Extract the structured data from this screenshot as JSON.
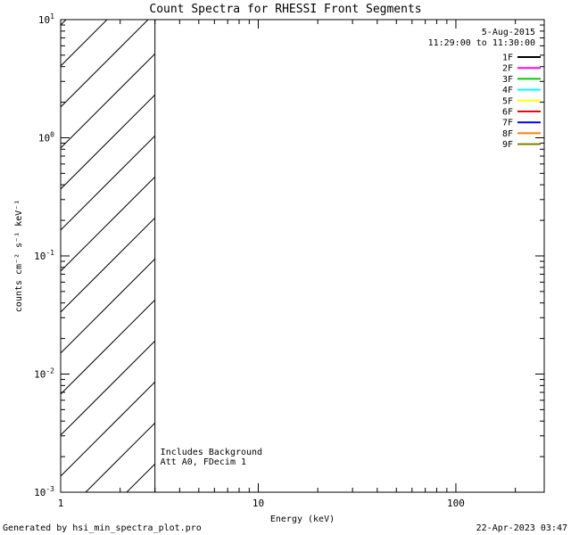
{
  "page": {
    "title": "Count Spectra for RHESSI Front Segments",
    "footer_left": "Generated by hsi_min_spectra_plot.pro",
    "footer_right": "22-Apr-2023 03:47"
  },
  "chart_data": {
    "type": "line",
    "title": "Count Spectra for RHESSI Front Segments",
    "xlabel": "Energy (keV)",
    "ylabel": "counts cm⁻² s⁻¹ keV⁻¹",
    "xscale": "log",
    "yscale": "log",
    "xlim": [
      1,
      280
    ],
    "ylim": [
      0.001,
      10
    ],
    "x_major_ticks": [
      1,
      10,
      100
    ],
    "x_tick_labels": [
      "1",
      "10",
      "100"
    ],
    "y_major_ticks": [
      0.001,
      0.01,
      0.1,
      1,
      10
    ],
    "y_tick_exponents": [
      "-3",
      "-2",
      "-1",
      "0",
      "1"
    ],
    "grid": false,
    "frame_color": "#000000",
    "background_color": "#ffffff",
    "hatched_region": {
      "x_start": 1,
      "x_end": 3
    },
    "annotations": [
      "Includes Background",
      "Att A0, FDecim 1"
    ],
    "legend": {
      "position": "top-right",
      "date": "5-Aug-2015",
      "time_range": "11:29:00 to 11:30:00",
      "entries": [
        {
          "label": "1F",
          "color": "#000000"
        },
        {
          "label": "2F",
          "color": "#ff00ff"
        },
        {
          "label": "3F",
          "color": "#00cc00"
        },
        {
          "label": "4F",
          "color": "#00ffff"
        },
        {
          "label": "5F",
          "color": "#ffff00"
        },
        {
          "label": "6F",
          "color": "#ff0000"
        },
        {
          "label": "7F",
          "color": "#0000ff"
        },
        {
          "label": "8F",
          "color": "#ff8000"
        },
        {
          "label": "9F",
          "color": "#808000"
        }
      ]
    },
    "series": [
      {
        "name": "1F",
        "color": "#000000",
        "values": []
      },
      {
        "name": "2F",
        "color": "#ff00ff",
        "values": []
      },
      {
        "name": "3F",
        "color": "#00cc00",
        "values": []
      },
      {
        "name": "4F",
        "color": "#00ffff",
        "values": []
      },
      {
        "name": "5F",
        "color": "#ffff00",
        "values": []
      },
      {
        "name": "6F",
        "color": "#ff0000",
        "values": []
      },
      {
        "name": "7F",
        "color": "#0000ff",
        "values": []
      },
      {
        "name": "8F",
        "color": "#ff8000",
        "values": []
      },
      {
        "name": "9F",
        "color": "#808000",
        "values": []
      }
    ]
  }
}
